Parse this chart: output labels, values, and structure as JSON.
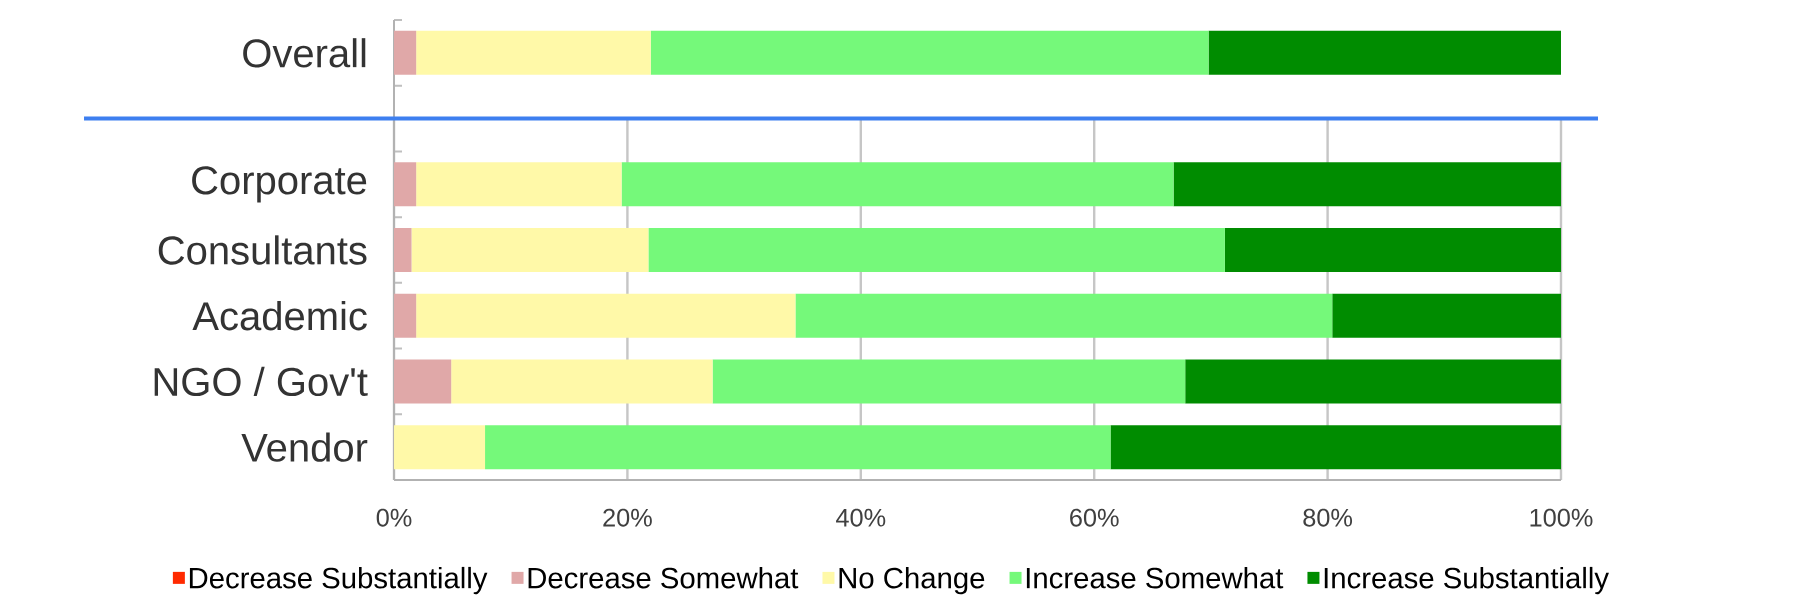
{
  "chart_data": [
    {
      "type": "bar",
      "orientation": "horizontal",
      "stacked": true,
      "categories": [
        "Overall"
      ],
      "series": [
        {
          "color": "#ff2a00",
          "values": [
            0
          ]
        },
        {
          "color": "#e0a8a8",
          "values": [
            1.9
          ]
        },
        {
          "color": "#fff9a8",
          "values": [
            20.1
          ]
        },
        {
          "color": "#75f97a",
          "values": [
            47.8
          ]
        },
        {
          "color": "#008c00",
          "values": [
            30.2
          ]
        }
      ],
      "xlim": [
        0,
        100
      ],
      "tick_labels": "y"
    },
    {
      "type": "bar",
      "orientation": "horizontal",
      "stacked": true,
      "categories": [
        "Corporate",
        "Consultants",
        "Academic",
        "NGO / Gov't",
        "Vendor"
      ],
      "series": [
        {
          "name": "Decrease Substantially",
          "color": "#ff2a00",
          "values": [
            0,
            0,
            0,
            0,
            0
          ]
        },
        {
          "name": "Decrease Somewhat",
          "color": "#e0a8a8",
          "values": [
            1.9,
            1.5,
            1.9,
            4.9,
            0
          ]
        },
        {
          "name": "No Change",
          "color": "#fff9a8",
          "values": [
            17.6,
            20.3,
            32.5,
            22.4,
            7.8
          ]
        },
        {
          "name": "Increase Somewhat",
          "color": "#75f97a",
          "values": [
            47.3,
            49.4,
            46.0,
            40.5,
            53.6
          ]
        },
        {
          "name": "Increase Substantially",
          "color": "#008c00",
          "values": [
            33.2,
            28.8,
            19.6,
            32.2,
            38.6
          ]
        }
      ],
      "xlim": [
        0,
        100
      ],
      "xticks": [
        {
          "value": 0,
          "label": "0%"
        },
        {
          "value": 20,
          "label": "20%"
        },
        {
          "value": 40,
          "label": "40%"
        },
        {
          "value": 60,
          "label": "60%"
        },
        {
          "value": 80,
          "label": "80%"
        },
        {
          "value": 100,
          "label": "100%"
        }
      ],
      "grid": "x",
      "legend": "bottom"
    }
  ]
}
